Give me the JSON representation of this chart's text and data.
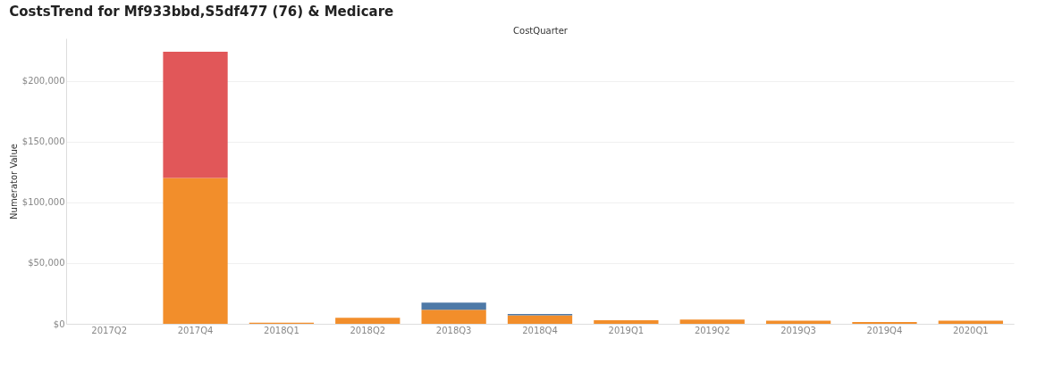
{
  "chart_data": {
    "type": "bar",
    "title": "CostsTrend for Mf933bbd,S5df477 (76) & Medicare",
    "xlabel": "CostQuarter",
    "ylabel": "Numerator Value",
    "categories": [
      "2017Q2",
      "2017Q4",
      "2018Q1",
      "2018Q2",
      "2018Q3",
      "2018Q4",
      "2019Q1",
      "2019Q2",
      "2019Q3",
      "2019Q4",
      "2020Q1"
    ],
    "stacked": true,
    "series": [
      {
        "color": "#f28e2b",
        "values": [
          0,
          120000,
          1000,
          5000,
          11500,
          7000,
          3000,
          3500,
          2500,
          1500,
          2500
        ]
      },
      {
        "color": "#e15759",
        "values": [
          0,
          104000,
          0,
          0,
          0,
          0,
          0,
          0,
          0,
          0,
          0
        ]
      },
      {
        "color": "#4e79a7",
        "values": [
          0,
          0,
          0,
          0,
          6000,
          1000,
          0,
          0,
          0,
          0,
          0
        ]
      }
    ],
    "ylim": [
      0,
      235000
    ],
    "yticks": [
      {
        "value": 0,
        "label": "$0"
      },
      {
        "value": 50000,
        "label": "$50,000"
      },
      {
        "value": 100000,
        "label": "$100,000"
      },
      {
        "value": 150000,
        "label": "$150,000"
      },
      {
        "value": 200000,
        "label": "$200,000"
      }
    ],
    "grid": "y",
    "legend": false
  }
}
